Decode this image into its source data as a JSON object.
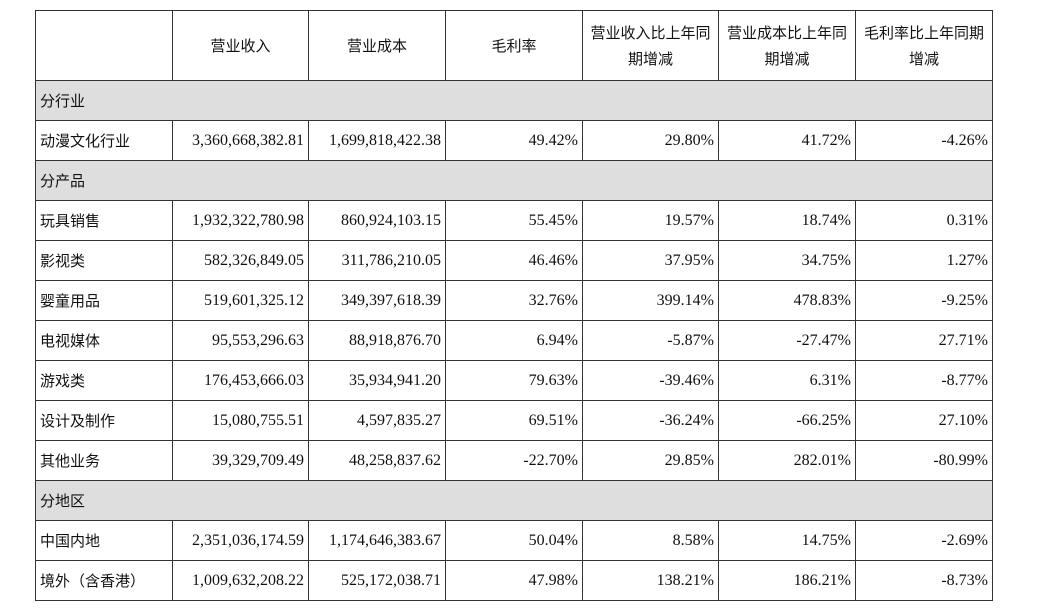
{
  "table": {
    "header": [
      "",
      "营业收入",
      "营业成本",
      "毛利率",
      "营业收入比上年同期增减",
      "营业成本比上年同期增减",
      "毛利率比上年同期增减"
    ],
    "rows": [
      [
        "分行业"
      ],
      [
        "动漫文化行业",
        "3,360,668,382.81",
        "1,699,818,422.38",
        "49.42%",
        "29.80%",
        "41.72%",
        "-4.26%"
      ],
      [
        "分产品"
      ],
      [
        "玩具销售",
        "1,932,322,780.98",
        "860,924,103.15",
        "55.45%",
        "19.57%",
        "18.74%",
        "0.31%"
      ],
      [
        "影视类",
        "582,326,849.05",
        "311,786,210.05",
        "46.46%",
        "37.95%",
        "34.75%",
        "1.27%"
      ],
      [
        "婴童用品",
        "519,601,325.12",
        "349,397,618.39",
        "32.76%",
        "399.14%",
        "478.83%",
        "-9.25%"
      ],
      [
        "电视媒体",
        "95,553,296.63",
        "88,918,876.70",
        "6.94%",
        "-5.87%",
        "-27.47%",
        "27.71%"
      ],
      [
        "游戏类",
        "176,453,666.03",
        "35,934,941.20",
        "79.63%",
        "-39.46%",
        "6.31%",
        "-8.77%"
      ],
      [
        "设计及制作",
        "15,080,755.51",
        "4,597,835.27",
        "69.51%",
        "-36.24%",
        "-66.25%",
        "27.10%"
      ],
      [
        "其他业务",
        "39,329,709.49",
        "48,258,837.62",
        "-22.70%",
        "29.85%",
        "282.01%",
        "-80.99%"
      ],
      [
        "分地区"
      ],
      [
        "中国内地",
        "2,351,036,174.59",
        "1,174,646,383.67",
        "50.04%",
        "8.58%",
        "14.75%",
        "-2.69%"
      ],
      [
        "境外（含香港）",
        "1,009,632,208.22",
        "525,172,038.71",
        "47.98%",
        "138.21%",
        "186.21%",
        "-8.73%"
      ]
    ]
  }
}
